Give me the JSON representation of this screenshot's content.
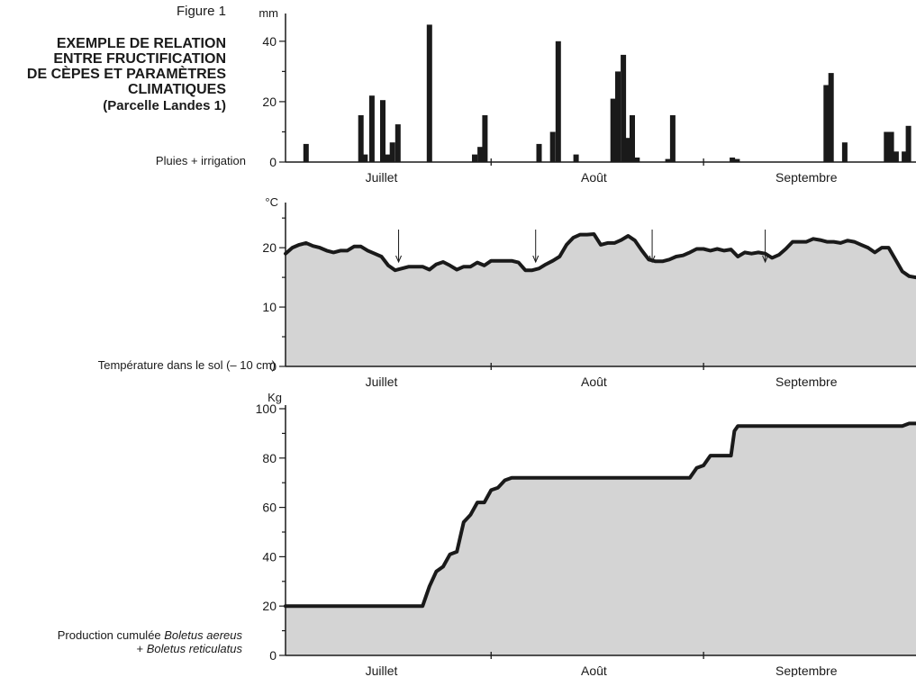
{
  "figure": {
    "label": "Figure 1",
    "title_lines": [
      "EXEMPLE DE RELATION",
      "ENTRE FRUCTIFICATION",
      "DE CÈPES ET PARAMÈTRES",
      "CLIMATIQUES"
    ],
    "subtitle": "(Parcelle Landes 1)"
  },
  "months": [
    "Juillet",
    "Août",
    "Septembre"
  ],
  "panel_labels": {
    "rain": "Pluies + irrigation",
    "temp": "Température dans le sol (– 10 cm)",
    "prod_line1_prefix": "Production cumulée ",
    "prod_line1_italic": "Boletus aereus",
    "prod_line2_prefix": "+ ",
    "prod_line2_italic": "Boletus reticulatus"
  },
  "colors": {
    "fill": "#d4d4d4",
    "ink": "#1a1a1a"
  },
  "chart_data": [
    {
      "type": "bar",
      "ylabel": "mm",
      "xlabel": "Pluies + irrigation",
      "ylim": [
        0,
        48
      ],
      "yticks": [
        0,
        20,
        40
      ],
      "xlim": [
        1,
        93
      ],
      "x_ticks_day": [
        31,
        62
      ],
      "x_month_centers": [
        15,
        46,
        77
      ],
      "series": [
        {
          "x": [
            4,
            12,
            12.6,
            13.6,
            15.2,
            15.9,
            16.6,
            17.4,
            22,
            28.6,
            29.4,
            30.1,
            38,
            40,
            40.8,
            43.4,
            48.8,
            49.5,
            50.3,
            50.9,
            51.6,
            52.3,
            56.8,
            57.5,
            66.2,
            66.9,
            79.9,
            80.6,
            82.6,
            88.7,
            89.4,
            90.1,
            91.3,
            91.9,
            93.4
          ],
          "values": [
            6,
            15.5,
            2.5,
            22,
            20.5,
            2.5,
            6.5,
            12.5,
            45.5,
            2.5,
            5,
            15.5,
            6,
            10,
            40,
            2.5,
            21,
            30,
            35.5,
            8,
            15.5,
            1.5,
            1,
            15.5,
            1.5,
            1,
            25.5,
            29.5,
            6.5,
            10,
            10,
            3.5,
            3.5,
            12,
            12
          ]
        }
      ]
    },
    {
      "type": "area",
      "ylabel": "°C",
      "xlabel": "Température dans le sol (– 10 cm)",
      "ylim": [
        0,
        27
      ],
      "yticks": [
        0,
        10,
        20
      ],
      "xlim": [
        1,
        93
      ],
      "x_ticks_day": [
        31,
        62
      ],
      "x_month_centers": [
        15,
        46,
        77
      ],
      "annotations_day": [
        17.5,
        37.5,
        54.5,
        71
      ],
      "x": [
        1,
        2,
        3,
        4,
        5,
        6,
        7,
        8,
        9,
        10,
        11,
        12,
        13,
        14,
        15,
        16,
        17,
        18,
        19,
        20,
        21,
        22,
        23,
        24,
        25,
        26,
        27,
        28,
        29,
        30,
        31,
        32,
        33,
        34,
        35,
        36,
        37,
        38,
        39,
        40,
        41,
        42,
        43,
        44,
        45,
        46,
        47,
        48,
        49,
        50,
        51,
        52,
        53,
        54,
        55,
        56,
        57,
        58,
        59,
        60,
        61,
        62,
        63,
        64,
        65,
        66,
        67,
        68,
        69,
        70,
        71,
        72,
        73,
        74,
        75,
        76,
        77,
        78,
        79,
        80,
        81,
        82,
        83,
        84,
        85,
        86,
        87,
        88,
        89,
        90,
        91,
        92,
        93
      ],
      "values": [
        19,
        20,
        20.5,
        20.8,
        20.3,
        20,
        19.5,
        19.2,
        19.5,
        19.5,
        20.2,
        20.2,
        19.5,
        19,
        18.5,
        17,
        16.2,
        16.5,
        16.8,
        16.8,
        16.8,
        16.3,
        17.2,
        17.6,
        17,
        16.3,
        16.8,
        16.8,
        17.5,
        17,
        17.8,
        17.8,
        17.8,
        17.8,
        17.5,
        16.2,
        16.2,
        16.5,
        17.2,
        17.8,
        18.5,
        20.5,
        21.7,
        22.2,
        22.2,
        22.3,
        20.5,
        20.8,
        20.8,
        21.3,
        22,
        21.2,
        19.5,
        18,
        17.7,
        17.7,
        18,
        18.5,
        18.7,
        19.2,
        19.8,
        19.8,
        19.5,
        19.8,
        19.5,
        19.7,
        18.5,
        19.2,
        19,
        19.2,
        19,
        18.3,
        18.8,
        19.8,
        21,
        21,
        21,
        21.5,
        21.3,
        21,
        21,
        20.8,
        21.2,
        21,
        20.5,
        20,
        19.2,
        20,
        20,
        18,
        16,
        15.2,
        15
      ]
    },
    {
      "type": "area",
      "ylabel": "Kg",
      "xlabel": "Production cumulée Boletus aereus + Boletus reticulatus",
      "ylim": [
        0,
        100
      ],
      "yticks": [
        0,
        20,
        40,
        60,
        80,
        100
      ],
      "xlim": [
        1,
        93
      ],
      "x_ticks_day": [
        31,
        62
      ],
      "x_month_centers": [
        15,
        46,
        77
      ],
      "x": [
        1,
        21,
        22,
        23,
        24,
        25,
        26,
        27,
        28,
        29,
        30,
        31,
        32,
        33,
        34,
        35,
        36,
        45,
        47,
        60,
        61,
        62,
        63,
        64,
        65,
        66,
        66.5,
        67,
        91,
        92,
        93
      ],
      "values": [
        20,
        20,
        28,
        34,
        36,
        41,
        42,
        54,
        57,
        62,
        62,
        67,
        68,
        71,
        72,
        72,
        72,
        72,
        72,
        72,
        76,
        77,
        81,
        81,
        81,
        81,
        91,
        93,
        93,
        94,
        94
      ]
    }
  ]
}
